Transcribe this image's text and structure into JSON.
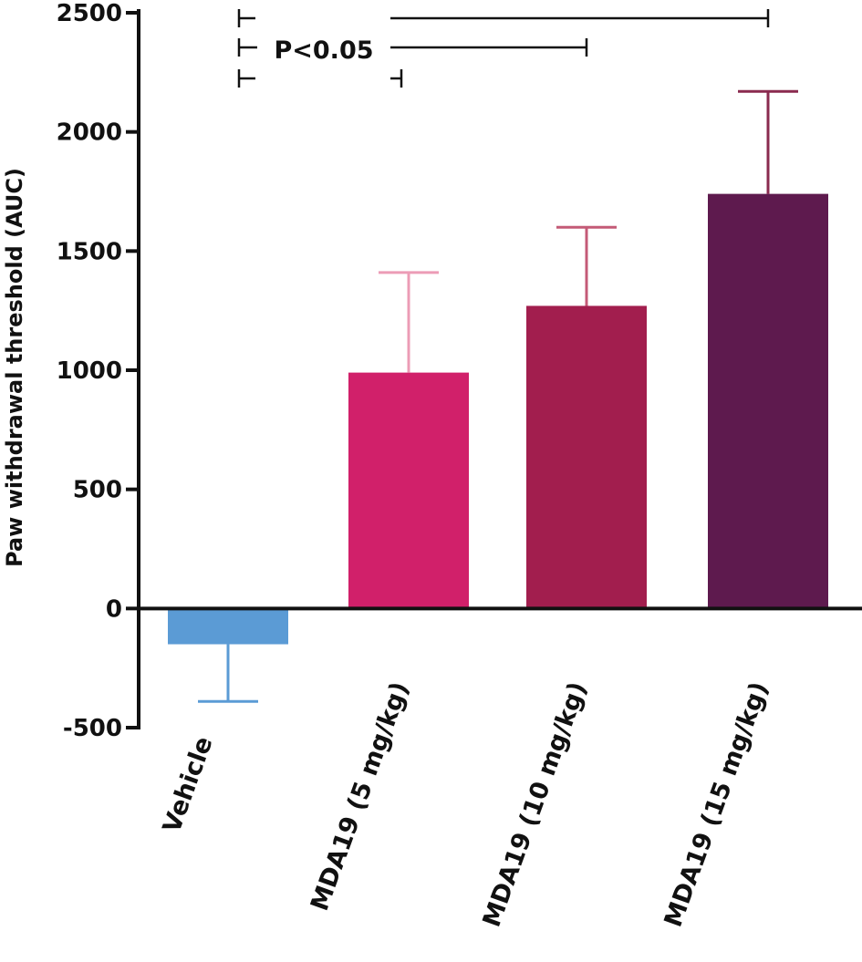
{
  "chart_data": {
    "type": "bar",
    "title": "",
    "xlabel": "",
    "ylabel": "Paw withdrawal threshold (AUC)",
    "ylim": [
      -500,
      2500
    ],
    "yticks": [
      2500,
      2000,
      1500,
      1000,
      500,
      0,
      -500
    ],
    "categories": [
      "Vehicle",
      "MDA19 (5 mg/kg)",
      "MDA19 (10 mg/kg)",
      "MDA19 (15 mg/kg)"
    ],
    "values": [
      -150,
      990,
      1270,
      1740
    ],
    "errors": [
      240,
      420,
      330,
      430
    ],
    "error_direction": [
      "down",
      "up",
      "up",
      "up"
    ],
    "colors": [
      "#5b9bd5",
      "#d1206a",
      "#a21e4e",
      "#5e1a4e"
    ],
    "error_colors": [
      "#5b9bd5",
      "#ec9cb6",
      "#c45a77",
      "#8a2a4f"
    ],
    "grid": false,
    "legend": false,
    "significance": {
      "label": "P<0.05",
      "comparisons": [
        {
          "from": "Vehicle",
          "to": "MDA19 (15 mg/kg)"
        },
        {
          "from": "Vehicle",
          "to": "MDA19 (10 mg/kg)"
        },
        {
          "from": "Vehicle",
          "to": "MDA19 (5 mg/kg)"
        }
      ]
    }
  }
}
